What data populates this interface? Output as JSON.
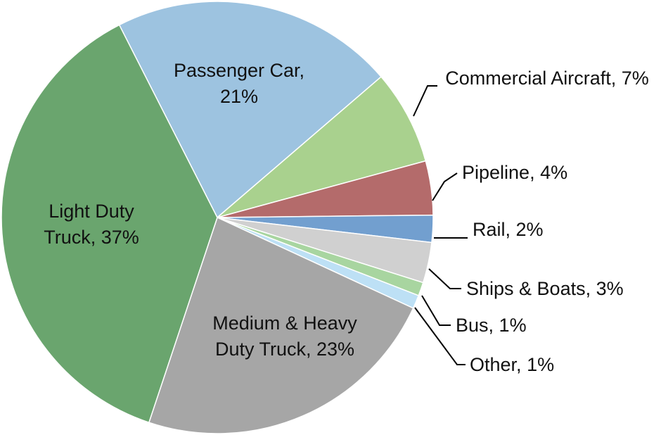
{
  "chart_data": {
    "type": "pie",
    "categories": [
      "Passenger Car,",
      "Commercial Aircraft,",
      "Pipeline,",
      "Rail,",
      "Ships & Boats,",
      "Bus,",
      "Other,",
      "Medium & Heavy Duty Truck,",
      "Light Duty Truck,"
    ],
    "values": [
      21,
      7,
      4,
      2,
      3,
      1,
      1,
      23,
      37
    ],
    "value_labels": [
      "21%",
      "7%",
      "4%",
      "2%",
      "3%",
      "1%",
      "1%",
      "23%",
      "37%"
    ],
    "colors": [
      "#9dc3e0",
      "#a9d18e",
      "#b46b6b",
      "#729fcf",
      "#d0d0d0",
      "#a8d5a0",
      "#bde0f5",
      "#a6a6a6",
      "#6aa56e"
    ]
  }
}
